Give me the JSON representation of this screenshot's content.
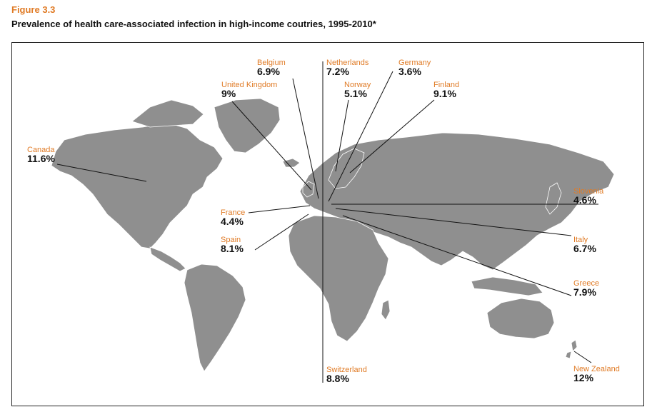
{
  "figure_label": "Figure 3.3",
  "figure_title": "Prevalence of health care-associated infection in high-income coutries, 1995-2010*",
  "colors": {
    "label": "#e07b26",
    "land": "#8f8f8f",
    "value": "#111111"
  },
  "chart_data": {
    "type": "map",
    "unit": "%",
    "points": [
      {
        "country": "Belgium",
        "value_label": "6.9%",
        "value": 6.9
      },
      {
        "country": "Netherlands",
        "value_label": "7.2%",
        "value": 7.2
      },
      {
        "country": "Germany",
        "value_label": "3.6%",
        "value": 3.6
      },
      {
        "country": "United Kingdom",
        "value_label": "9%",
        "value": 9
      },
      {
        "country": "Norway",
        "value_label": "5.1%",
        "value": 5.1
      },
      {
        "country": "Finland",
        "value_label": "9.1%",
        "value": 9.1
      },
      {
        "country": "Canada",
        "value_label": "11.6%",
        "value": 11.6
      },
      {
        "country": "Slovenia",
        "value_label": "4.6%",
        "value": 4.6
      },
      {
        "country": "France",
        "value_label": "4.4%",
        "value": 4.4
      },
      {
        "country": "Italy",
        "value_label": "6.7%",
        "value": 6.7
      },
      {
        "country": "Spain",
        "value_label": "8.1%",
        "value": 8.1
      },
      {
        "country": "Greece",
        "value_label": "7.9%",
        "value": 7.9
      },
      {
        "country": "Switzerland",
        "value_label": "8.8%",
        "value": 8.8
      },
      {
        "country": "New Zealand",
        "value_label": "12%",
        "value": 12
      }
    ]
  }
}
